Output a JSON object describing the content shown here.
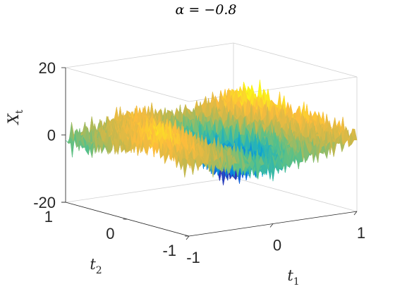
{
  "chart_data": {
    "type": "surface",
    "title": "α = −0.8",
    "xlabel": {
      "symbol": "t",
      "sub": "1"
    },
    "ylabel": {
      "symbol": "t",
      "sub": "2"
    },
    "zlabel": {
      "symbol": "X",
      "sub": "t"
    },
    "xlim": [
      -1,
      1
    ],
    "ylim": [
      -1,
      1
    ],
    "zlim": [
      -20,
      20
    ],
    "x_ticks": [
      "-1",
      "0",
      "1"
    ],
    "y_ticks": [
      "-1",
      "0",
      "1"
    ],
    "z_ticks": [
      "-20",
      "0",
      "20"
    ],
    "colormap": [
      "#3e26a8",
      "#0a72e6",
      "#14adca",
      "#56c18a",
      "#c5b84d",
      "#fdbc3c",
      "#f9fb15"
    ],
    "grid_z": [
      [
        1,
        2,
        0,
        -1,
        -2,
        -3,
        -2,
        -1,
        0,
        1,
        2
      ],
      [
        2,
        3,
        1,
        0,
        -2,
        -4,
        -3,
        -1,
        0,
        2,
        3
      ],
      [
        3,
        4,
        2,
        0,
        -1,
        -3,
        -5,
        -2,
        1,
        2,
        3
      ],
      [
        4,
        5,
        3,
        1,
        -1,
        -4,
        -7,
        -4,
        0,
        3,
        4
      ],
      [
        3,
        5,
        4,
        2,
        -2,
        -6,
        -9,
        -6,
        -1,
        3,
        5
      ],
      [
        2,
        4,
        5,
        3,
        -1,
        -7,
        -11,
        -8,
        -2,
        2,
        4
      ],
      [
        1,
        3,
        4,
        2,
        0,
        -5,
        -9,
        -7,
        -1,
        3,
        5
      ],
      [
        0,
        2,
        3,
        3,
        1,
        -3,
        -6,
        -4,
        0,
        4,
        6
      ],
      [
        -1,
        1,
        2,
        4,
        2,
        -1,
        -3,
        -2,
        1,
        5,
        7
      ],
      [
        -2,
        0,
        1,
        3,
        3,
        1,
        -1,
        0,
        2,
        4,
        6
      ],
      [
        -1,
        0,
        0,
        2,
        2,
        2,
        1,
        1,
        2,
        3,
        4
      ]
    ]
  }
}
